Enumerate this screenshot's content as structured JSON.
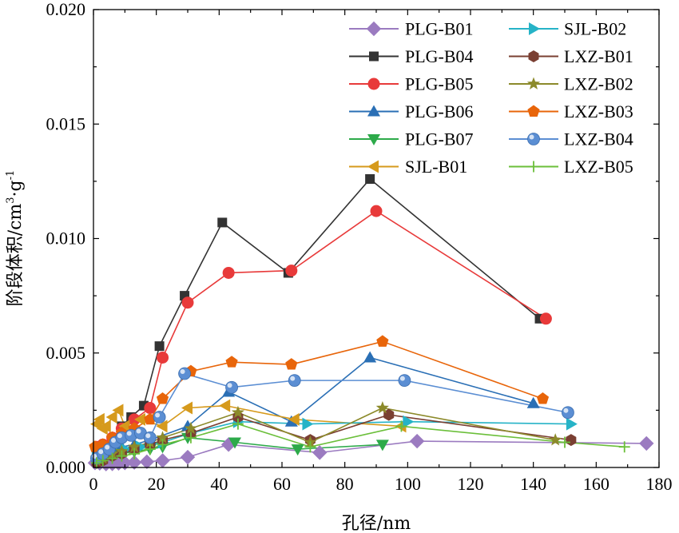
{
  "chart_data": {
    "type": "line",
    "xlabel": "孔径/nm",
    "ylabel_main": "阶段体积/cm",
    "ylabel_sup1": "3",
    "ylabel_mid": "·g",
    "ylabel_sup2": "-1",
    "xlim": [
      0,
      180
    ],
    "ylim": [
      0,
      0.02
    ],
    "xticks": [
      "0",
      "20",
      "40",
      "60",
      "80",
      "100",
      "120",
      "140",
      "160",
      "180"
    ],
    "yticks": [
      "0.000",
      "0.005",
      "0.010",
      "0.015",
      "0.020"
    ],
    "grid": false,
    "legend_position": "top-right",
    "series": [
      {
        "name": "PLG-B01",
        "color": "#9b7bc0",
        "marker": "diamond",
        "x": [
          0.5,
          2,
          4,
          6,
          8,
          10,
          13,
          17,
          22,
          30,
          43,
          72,
          103,
          176
        ],
        "y": [
          0.0002,
          0.00018,
          0.00015,
          0.00016,
          0.00018,
          0.0002,
          0.00022,
          0.00025,
          0.0003,
          0.00045,
          0.001,
          0.00065,
          0.00115,
          0.00105
        ]
      },
      {
        "name": "PLG-B04",
        "color": "#333333",
        "marker": "square",
        "x": [
          1,
          3,
          6,
          9,
          12,
          16,
          21,
          29,
          41,
          62,
          88,
          142
        ],
        "y": [
          0.0008,
          0.0009,
          0.0012,
          0.0018,
          0.0022,
          0.0027,
          0.0053,
          0.0075,
          0.0107,
          0.0085,
          0.0126,
          0.0065
        ]
      },
      {
        "name": "PLG-B05",
        "color": "#e83a3a",
        "marker": "circle",
        "x": [
          1,
          3,
          6,
          9,
          13,
          18,
          22,
          30,
          43,
          63,
          90,
          144
        ],
        "y": [
          0.0009,
          0.001,
          0.0013,
          0.0017,
          0.0021,
          0.0026,
          0.0048,
          0.0072,
          0.0085,
          0.0086,
          0.0112,
          0.0065
        ]
      },
      {
        "name": "PLG-B06",
        "color": "#2a6fb5",
        "marker": "triangle-up",
        "x": [
          1,
          3,
          6,
          9,
          13,
          18,
          30,
          43,
          63,
          88,
          140
        ],
        "y": [
          0.0005,
          0.0006,
          0.0008,
          0.0009,
          0.001,
          0.0012,
          0.0018,
          0.0033,
          0.002,
          0.0048,
          0.0028
        ]
      },
      {
        "name": "PLG-B07",
        "color": "#2daa4a",
        "marker": "triangle-down",
        "x": [
          1,
          3,
          6,
          9,
          13,
          18,
          22,
          30,
          45,
          65,
          92
        ],
        "y": [
          0.0003,
          0.0004,
          0.0005,
          0.0006,
          0.0007,
          0.0008,
          0.0009,
          0.0013,
          0.0011,
          0.0008,
          0.001
        ]
      },
      {
        "name": "SJL-B01",
        "color": "#d69a1c",
        "marker": "triangle-left",
        "x": [
          1,
          2,
          3,
          4,
          6,
          8,
          10,
          15,
          22,
          30,
          42,
          64,
          98
        ],
        "y": [
          0.0019,
          0.0021,
          0.0017,
          0.0018,
          0.0022,
          0.0025,
          0.0018,
          0.0021,
          0.0018,
          0.0026,
          0.0027,
          0.0021,
          0.0018
        ]
      },
      {
        "name": "SJL-B02",
        "color": "#26b3c7",
        "marker": "triangle-right",
        "x": [
          1,
          3,
          6,
          10,
          15,
          22,
          31,
          46,
          68,
          100,
          152
        ],
        "y": [
          0.0004,
          0.0005,
          0.0006,
          0.0008,
          0.0009,
          0.0011,
          0.0015,
          0.002,
          0.0019,
          0.002,
          0.0019
        ]
      },
      {
        "name": "LXZ-B01",
        "color": "#7a3f32",
        "marker": "hexagon",
        "x": [
          1,
          3,
          6,
          9,
          13,
          18,
          22,
          31,
          46,
          69,
          94,
          152
        ],
        "y": [
          0.0002,
          0.0003,
          0.0005,
          0.0006,
          0.0008,
          0.001,
          0.0012,
          0.0015,
          0.0022,
          0.0012,
          0.0023,
          0.0012
        ]
      },
      {
        "name": "LXZ-B02",
        "color": "#8c8a2a",
        "marker": "star",
        "x": [
          1,
          3,
          6,
          9,
          13,
          18,
          22,
          31,
          46,
          69,
          92,
          147
        ],
        "y": [
          0.0003,
          0.0004,
          0.0006,
          0.0007,
          0.0009,
          0.0011,
          0.0013,
          0.0017,
          0.0024,
          0.0011,
          0.0026,
          0.0012
        ]
      },
      {
        "name": "LXZ-B03",
        "color": "#e8650a",
        "marker": "pentagon",
        "x": [
          0.5,
          3,
          6,
          9,
          13,
          18,
          22,
          31,
          44,
          63,
          92,
          143
        ],
        "y": [
          0.0009,
          0.001,
          0.0013,
          0.0015,
          0.0017,
          0.0021,
          0.003,
          0.0042,
          0.0046,
          0.0045,
          0.0055,
          0.003
        ]
      },
      {
        "name": "LXZ-B04",
        "color": "#5b8ed3",
        "marker": "sphere",
        "x": [
          1,
          3,
          5,
          7,
          9,
          12,
          15,
          18,
          21,
          29,
          44,
          64,
          99,
          151
        ],
        "y": [
          0.0004,
          0.0006,
          0.0008,
          0.0011,
          0.0013,
          0.0014,
          0.0015,
          0.0013,
          0.0022,
          0.0041,
          0.0035,
          0.0038,
          0.0038,
          0.0024
        ]
      },
      {
        "name": "LXZ-B05",
        "color": "#6bbf3a",
        "marker": "plus",
        "x": [
          1,
          3,
          6,
          9,
          13,
          18,
          22,
          31,
          46,
          69,
          98,
          150,
          169
        ],
        "y": [
          0.0002,
          0.0003,
          0.0004,
          0.0005,
          0.0006,
          0.0008,
          0.001,
          0.0013,
          0.0019,
          0.0009,
          0.0018,
          0.0011,
          0.0009
        ]
      }
    ],
    "legend_left_column": [
      "PLG-B01",
      "PLG-B04",
      "PLG-B05",
      "PLG-B06",
      "PLG-B07",
      "SJL-B01"
    ],
    "legend_right_column": [
      "SJL-B02",
      "LXZ-B01",
      "LXZ-B02",
      "LXZ-B03",
      "LXZ-B04",
      "LXZ-B05"
    ]
  }
}
